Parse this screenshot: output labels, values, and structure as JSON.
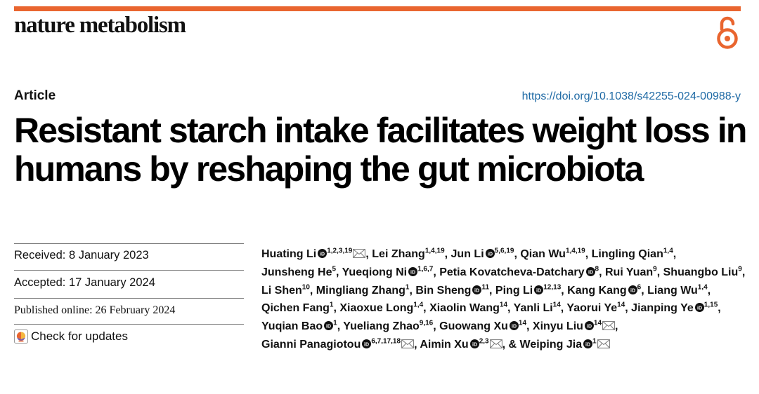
{
  "journal": "nature metabolism",
  "article_type": "Article",
  "doi": "https://doi.org/10.1038/s42255-024-00988-y",
  "title": "Resistant starch intake facilitates weight loss in humans by reshaping the gut microbiota",
  "received": "Received: 8 January 2023",
  "accepted": "Accepted: 17 January 2024",
  "published": "Published online: 26 February 2024",
  "check_updates": "Check for updates",
  "colors": {
    "accent": "#e9652f",
    "link": "#1f6aa5"
  },
  "authors": [
    {
      "name": "Huating Li",
      "orcid": true,
      "sup": "1,2,3,19",
      "email": true
    },
    {
      "name": "Lei Zhang",
      "orcid": false,
      "sup": "1,4,19",
      "email": false
    },
    {
      "name": "Jun Li",
      "orcid": true,
      "sup": "5,6,19",
      "email": false
    },
    {
      "name": "Qian Wu",
      "orcid": false,
      "sup": "1,4,19",
      "email": false
    },
    {
      "name": "Lingling Qian",
      "orcid": false,
      "sup": "1,4",
      "email": false
    },
    {
      "name": "Junsheng He",
      "orcid": false,
      "sup": "5",
      "email": false
    },
    {
      "name": "Yueqiong Ni",
      "orcid": true,
      "sup": "1,6,7",
      "email": false
    },
    {
      "name": "Petia Kovatcheva-Datchary",
      "orcid": true,
      "sup": "8",
      "email": false
    },
    {
      "name": "Rui Yuan",
      "orcid": false,
      "sup": "9",
      "email": false
    },
    {
      "name": "Shuangbo Liu",
      "orcid": false,
      "sup": "9",
      "email": false
    },
    {
      "name": "Li Shen",
      "orcid": false,
      "sup": "10",
      "email": false
    },
    {
      "name": "Mingliang Zhang",
      "orcid": false,
      "sup": "1",
      "email": false
    },
    {
      "name": "Bin Sheng",
      "orcid": true,
      "sup": "11",
      "email": false
    },
    {
      "name": "Ping Li",
      "orcid": true,
      "sup": "12,13",
      "email": false
    },
    {
      "name": "Kang Kang",
      "orcid": true,
      "sup": "6",
      "email": false
    },
    {
      "name": "Liang Wu",
      "orcid": false,
      "sup": "1,4",
      "email": false
    },
    {
      "name": "Qichen Fang",
      "orcid": false,
      "sup": "1",
      "email": false
    },
    {
      "name": "Xiaoxue Long",
      "orcid": false,
      "sup": "1,4",
      "email": false
    },
    {
      "name": "Xiaolin Wang",
      "orcid": false,
      "sup": "14",
      "email": false
    },
    {
      "name": "Yanli Li",
      "orcid": false,
      "sup": "14",
      "email": false
    },
    {
      "name": "Yaorui Ye",
      "orcid": false,
      "sup": "14",
      "email": false
    },
    {
      "name": "Jianping Ye",
      "orcid": true,
      "sup": "1,15",
      "email": false
    },
    {
      "name": "Yuqian Bao",
      "orcid": true,
      "sup": "1",
      "email": false
    },
    {
      "name": "Yueliang Zhao",
      "orcid": false,
      "sup": "9,16",
      "email": false
    },
    {
      "name": "Guowang Xu",
      "orcid": true,
      "sup": "14",
      "email": false
    },
    {
      "name": "Xinyu Liu",
      "orcid": true,
      "sup": "14",
      "email": true
    },
    {
      "name": "Gianni Panagiotou",
      "orcid": true,
      "sup": "6,7,17,18",
      "email": true
    },
    {
      "name": "Aimin Xu",
      "orcid": true,
      "sup": "2,3",
      "email": true
    },
    {
      "name": "& Weiping Jia",
      "orcid": true,
      "sup": "1",
      "email": true
    }
  ]
}
